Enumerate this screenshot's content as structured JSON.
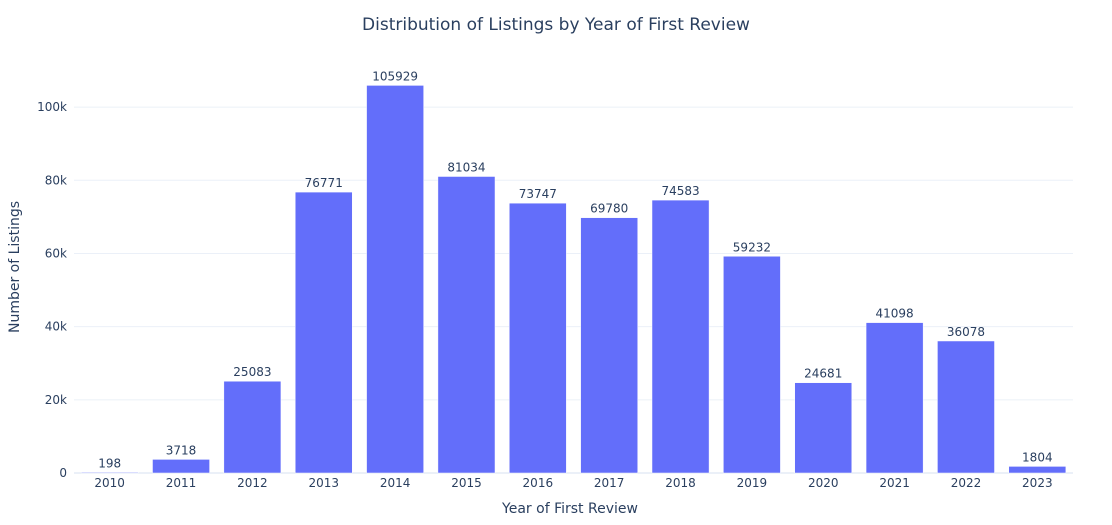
{
  "chart_data": {
    "type": "bar",
    "title": "Distribution of Listings by Year of First Review",
    "xlabel": "Year of First Review",
    "ylabel": "Number of Listings",
    "categories": [
      "2010",
      "2011",
      "2012",
      "2013",
      "2014",
      "2015",
      "2016",
      "2017",
      "2018",
      "2019",
      "2020",
      "2021",
      "2022",
      "2023"
    ],
    "values": [
      198,
      3718,
      25083,
      76771,
      105929,
      81034,
      73747,
      69780,
      74583,
      59232,
      24681,
      41098,
      36078,
      1804
    ],
    "ylim": [
      0,
      111504
    ],
    "yticks": [
      0,
      20000,
      40000,
      60000,
      80000,
      100000
    ],
    "ytick_labels": [
      "0",
      "20k",
      "40k",
      "60k",
      "80k",
      "100k"
    ],
    "grid": true,
    "bar_color": "#636efa",
    "data_labels": true
  }
}
